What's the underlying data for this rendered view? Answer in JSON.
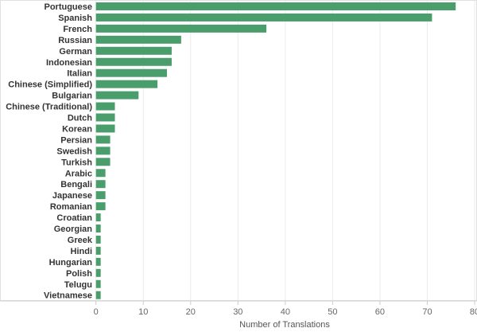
{
  "chart_data": {
    "type": "bar",
    "orientation": "horizontal",
    "title": "",
    "xlabel": "Number of Translations",
    "ylabel": "",
    "xlim": [
      0,
      80
    ],
    "xticks": [
      0,
      10,
      20,
      30,
      40,
      50,
      60,
      70,
      80
    ],
    "grid": true,
    "bar_color": "#4a9e6b",
    "categories": [
      "Portuguese",
      "Spanish",
      "French",
      "Russian",
      "German",
      "Indonesian",
      "Italian",
      "Chinese (Simplified)",
      "Bulgarian",
      "Chinese (Traditional)",
      "Dutch",
      "Korean",
      "Persian",
      "Swedish",
      "Turkish",
      "Arabic",
      "Bengali",
      "Japanese",
      "Romanian",
      "Croatian",
      "Georgian",
      "Greek",
      "Hindi",
      "Hungarian",
      "Polish",
      "Telugu",
      "Vietnamese"
    ],
    "values": [
      76,
      71,
      36,
      18,
      16,
      16,
      15,
      13,
      9,
      4,
      4,
      4,
      3,
      3,
      3,
      2,
      2,
      2,
      2,
      1,
      1,
      1,
      1,
      1,
      1,
      1,
      1
    ]
  }
}
